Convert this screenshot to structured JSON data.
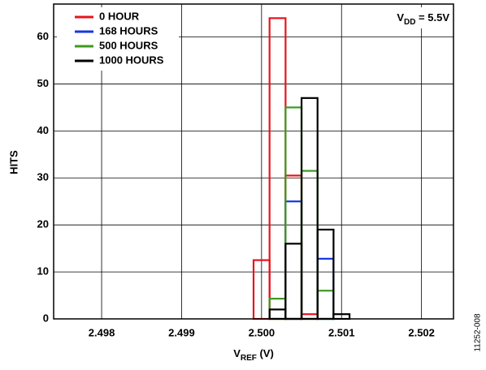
{
  "chart_data": {
    "type": "histogram",
    "bins": [
      2.4999,
      2.5001,
      2.5003,
      2.5005,
      2.5007,
      2.5009,
      2.5011
    ],
    "series": [
      {
        "name": "0 HOUR",
        "color": "#e8141b",
        "values": [
          12.5,
          64,
          30.5,
          1,
          0,
          0
        ]
      },
      {
        "name": "168 HOURS",
        "color": "#1536e0",
        "values": [
          0,
          0,
          25,
          0,
          12.8,
          0
        ]
      },
      {
        "name": "500 HOURS",
        "color": "#3c9a1e",
        "values": [
          0,
          4.3,
          45,
          31.5,
          6,
          0
        ]
      },
      {
        "name": "1000 HOURS",
        "color": "#000000",
        "values": [
          0,
          2,
          16,
          47,
          19,
          1
        ]
      }
    ],
    "xlim": [
      2.4974,
      2.5024
    ],
    "xticks": [
      2.498,
      2.499,
      {
        "value": 2.5,
        "label": "2.500"
      },
      2.501,
      2.502
    ],
    "ylim": [
      0,
      67
    ],
    "yticks": [
      0,
      10,
      20,
      30,
      40,
      50,
      60
    ],
    "ylabel": "HITS",
    "xlabel": {
      "main": "V",
      "sub": "REF",
      "rest": " (V)"
    },
    "annotation": {
      "main": "V",
      "sub": "DD",
      "rest": " = 5.5V"
    },
    "figure_id": "11252-008",
    "grid": true,
    "legend": "upper left"
  }
}
